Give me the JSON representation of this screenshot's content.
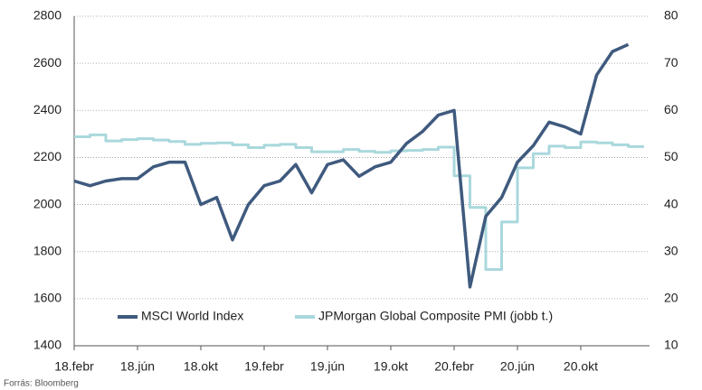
{
  "chart_data": {
    "type": "line",
    "categories": [
      "18.febr",
      null,
      null,
      null,
      "18.jún",
      null,
      null,
      null,
      "18.okt",
      null,
      null,
      null,
      "19.febr",
      null,
      null,
      null,
      "19.jún",
      null,
      null,
      null,
      "19.okt",
      null,
      null,
      null,
      "20.febr",
      null,
      null,
      null,
      "20.jún",
      null,
      null,
      null,
      "20.okt",
      null,
      null,
      null
    ],
    "series": [
      {
        "name": "MSCI World Index",
        "color": "#3f5a7e",
        "values": [
          2100,
          2080,
          2100,
          2110,
          2110,
          2160,
          2180,
          2180,
          2000,
          2030,
          1850,
          2000,
          2080,
          2100,
          2170,
          2050,
          2170,
          2190,
          2120,
          2160,
          2180,
          2260,
          2310,
          2380,
          2400,
          1650,
          1950,
          2030,
          2180,
          2250,
          2350,
          2330,
          2300,
          2550,
          2650,
          2680
        ]
      },
      {
        "name": "JPMorgan Global Composite PMI (jobb t.)",
        "color": "#a9d8dc",
        "axis": "y2",
        "values": [
          54.4,
          54.8,
          53.5,
          53.8,
          54.0,
          53.7,
          53.4,
          52.8,
          53.0,
          53.1,
          52.7,
          52.1,
          52.6,
          52.8,
          52.1,
          51.2,
          51.2,
          51.7,
          51.3,
          51.1,
          51.4,
          51.5,
          51.7,
          52.2,
          46.1,
          39.4,
          26.2,
          36.3,
          47.8,
          50.8,
          52.4,
          52.1,
          53.3,
          53.1,
          52.7,
          52.3
        ]
      }
    ],
    "ylim": [
      1400,
      2800
    ],
    "yticks": [
      1400,
      1600,
      1800,
      2000,
      2200,
      2400,
      2600,
      2800
    ],
    "y2lim": [
      10,
      80
    ],
    "y2ticks": [
      10,
      20,
      30,
      40,
      50,
      60,
      70,
      80
    ],
    "grid": true,
    "legend": "bottom",
    "source": "Forrás: Bloomberg"
  }
}
